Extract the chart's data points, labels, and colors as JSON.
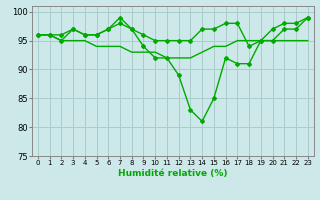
{
  "x": [
    0,
    1,
    2,
    3,
    4,
    5,
    6,
    7,
    8,
    9,
    10,
    11,
    12,
    13,
    14,
    15,
    16,
    17,
    18,
    19,
    20,
    21,
    22,
    23
  ],
  "line1": [
    96,
    96,
    96,
    97,
    96,
    96,
    97,
    99,
    97,
    96,
    95,
    95,
    95,
    95,
    97,
    97,
    98,
    98,
    94,
    95,
    97,
    98,
    98,
    99
  ],
  "line2": [
    96,
    96,
    95,
    97,
    96,
    96,
    97,
    98,
    97,
    94,
    92,
    92,
    89,
    83,
    81,
    85,
    92,
    91,
    91,
    95,
    95,
    97,
    97,
    99
  ],
  "line3": [
    96,
    96,
    95,
    95,
    95,
    94,
    94,
    94,
    93,
    93,
    93,
    92,
    92,
    92,
    93,
    94,
    94,
    95,
    95,
    95,
    95,
    95,
    95,
    95
  ],
  "ylim": [
    75,
    101
  ],
  "xlim": [
    -0.5,
    23.5
  ],
  "yticks": [
    75,
    80,
    85,
    90,
    95,
    100
  ],
  "xticks": [
    0,
    1,
    2,
    3,
    4,
    5,
    6,
    7,
    8,
    9,
    10,
    11,
    12,
    13,
    14,
    15,
    16,
    17,
    18,
    19,
    20,
    21,
    22,
    23
  ],
  "xlabel": "Humidité relative (%)",
  "line_color": "#00aa00",
  "bg_color": "#cce8e8",
  "grid_color": "#aacccc",
  "marker": "D",
  "marker_size": 2,
  "linewidth": 1.0
}
